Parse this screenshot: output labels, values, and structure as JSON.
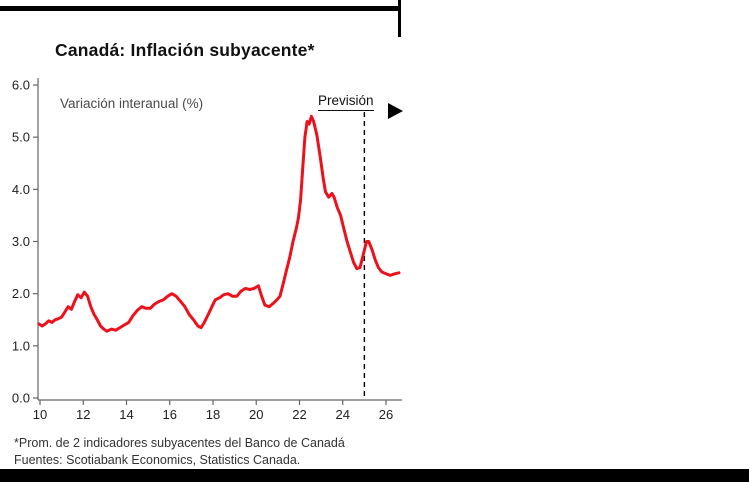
{
  "page": {
    "footnote_line1": "*Prom. de 2 indicadores subyacentes del Banco de Canadá",
    "footnote_line2": "Fuentes: Scotiabank Economics, Statistics Canada."
  },
  "chart_data": {
    "type": "line",
    "title": "Canadá: Inflación subyacente*",
    "annotation": "Variación interanual (%)",
    "forecast_label": "Previsión",
    "x_tick_labels": [
      "10",
      "12",
      "14",
      "16",
      "18",
      "20",
      "22",
      "24",
      "26"
    ],
    "x_tick_years": [
      2010,
      2012,
      2014,
      2016,
      2018,
      2020,
      2022,
      2024,
      2026
    ],
    "y_ticks": [
      0,
      1,
      2,
      3,
      4,
      5,
      6
    ],
    "y_tick_labels": [
      "0.0",
      "1.0",
      "2.0",
      "3.0",
      "4.0",
      "5.0",
      "6.0"
    ],
    "xlim": [
      2009.9,
      2026.9
    ],
    "ylim": [
      0,
      6
    ],
    "grid": false,
    "legend": "none",
    "forecast_start_year": 2025.0,
    "line_color": "#EC111A",
    "forecast_divider_color": "#000000",
    "axis_color": "#666666",
    "series": [
      {
        "name": "Inflación subyacente (variación interanual, %)",
        "points": [
          [
            2009.95,
            1.42
          ],
          [
            2010.1,
            1.38
          ],
          [
            2010.25,
            1.42
          ],
          [
            2010.4,
            1.48
          ],
          [
            2010.55,
            1.45
          ],
          [
            2010.7,
            1.5
          ],
          [
            2010.85,
            1.52
          ],
          [
            2011.0,
            1.55
          ],
          [
            2011.15,
            1.65
          ],
          [
            2011.3,
            1.75
          ],
          [
            2011.45,
            1.7
          ],
          [
            2011.6,
            1.85
          ],
          [
            2011.75,
            1.98
          ],
          [
            2011.9,
            1.92
          ],
          [
            2012.05,
            2.03
          ],
          [
            2012.2,
            1.95
          ],
          [
            2012.35,
            1.75
          ],
          [
            2012.5,
            1.6
          ],
          [
            2012.65,
            1.5
          ],
          [
            2012.8,
            1.38
          ],
          [
            2012.95,
            1.32
          ],
          [
            2013.1,
            1.28
          ],
          [
            2013.3,
            1.32
          ],
          [
            2013.5,
            1.3
          ],
          [
            2013.7,
            1.35
          ],
          [
            2013.9,
            1.4
          ],
          [
            2014.1,
            1.45
          ],
          [
            2014.3,
            1.58
          ],
          [
            2014.5,
            1.68
          ],
          [
            2014.7,
            1.75
          ],
          [
            2014.9,
            1.72
          ],
          [
            2015.1,
            1.72
          ],
          [
            2015.3,
            1.8
          ],
          [
            2015.5,
            1.85
          ],
          [
            2015.7,
            1.88
          ],
          [
            2015.9,
            1.95
          ],
          [
            2016.1,
            2.0
          ],
          [
            2016.3,
            1.95
          ],
          [
            2016.5,
            1.85
          ],
          [
            2016.7,
            1.75
          ],
          [
            2016.9,
            1.6
          ],
          [
            2017.1,
            1.5
          ],
          [
            2017.3,
            1.38
          ],
          [
            2017.45,
            1.35
          ],
          [
            2017.6,
            1.45
          ],
          [
            2017.8,
            1.62
          ],
          [
            2017.95,
            1.75
          ],
          [
            2018.1,
            1.88
          ],
          [
            2018.3,
            1.92
          ],
          [
            2018.5,
            1.98
          ],
          [
            2018.7,
            2.0
          ],
          [
            2018.9,
            1.95
          ],
          [
            2019.1,
            1.95
          ],
          [
            2019.3,
            2.05
          ],
          [
            2019.5,
            2.1
          ],
          [
            2019.7,
            2.08
          ],
          [
            2019.9,
            2.1
          ],
          [
            2020.1,
            2.15
          ],
          [
            2020.25,
            1.95
          ],
          [
            2020.4,
            1.78
          ],
          [
            2020.6,
            1.75
          ],
          [
            2020.8,
            1.82
          ],
          [
            2020.95,
            1.88
          ],
          [
            2021.1,
            1.95
          ],
          [
            2021.25,
            2.2
          ],
          [
            2021.4,
            2.45
          ],
          [
            2021.55,
            2.7
          ],
          [
            2021.7,
            3.0
          ],
          [
            2021.85,
            3.25
          ],
          [
            2021.95,
            3.45
          ],
          [
            2022.05,
            3.8
          ],
          [
            2022.15,
            4.4
          ],
          [
            2022.25,
            5.0
          ],
          [
            2022.35,
            5.3
          ],
          [
            2022.45,
            5.25
          ],
          [
            2022.55,
            5.4
          ],
          [
            2022.65,
            5.3
          ],
          [
            2022.8,
            5.05
          ],
          [
            2022.95,
            4.65
          ],
          [
            2023.1,
            4.2
          ],
          [
            2023.2,
            3.95
          ],
          [
            2023.35,
            3.85
          ],
          [
            2023.5,
            3.92
          ],
          [
            2023.6,
            3.85
          ],
          [
            2023.75,
            3.65
          ],
          [
            2023.9,
            3.5
          ],
          [
            2024.05,
            3.25
          ],
          [
            2024.2,
            3.0
          ],
          [
            2024.35,
            2.8
          ],
          [
            2024.5,
            2.6
          ],
          [
            2024.65,
            2.48
          ],
          [
            2024.8,
            2.5
          ],
          [
            2024.95,
            2.75
          ],
          [
            2025.1,
            3.0
          ],
          [
            2025.2,
            3.0
          ],
          [
            2025.35,
            2.85
          ],
          [
            2025.5,
            2.65
          ],
          [
            2025.65,
            2.5
          ],
          [
            2025.8,
            2.42
          ],
          [
            2026.0,
            2.38
          ],
          [
            2026.2,
            2.35
          ],
          [
            2026.4,
            2.38
          ],
          [
            2026.6,
            2.4
          ]
        ]
      }
    ]
  }
}
